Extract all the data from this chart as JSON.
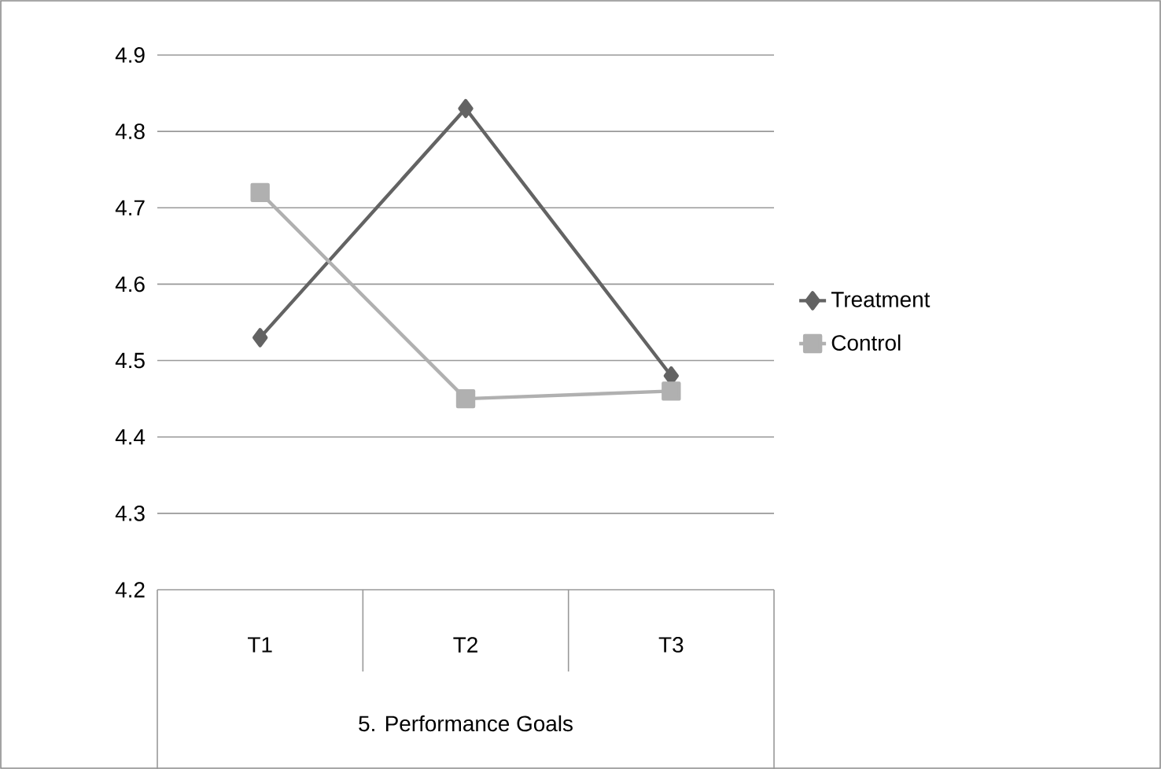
{
  "chart_data": {
    "type": "line",
    "xlabel": "5. Performance Goals",
    "categories": [
      "T1",
      "T2",
      "T3"
    ],
    "series": [
      {
        "name": "Treatment",
        "color": "#636363",
        "values": [
          4.53,
          4.83,
          4.48
        ],
        "marker": "diamond"
      },
      {
        "name": "Control",
        "color": "#b0b0b0",
        "values": [
          4.72,
          4.45,
          4.46
        ],
        "marker": "square"
      }
    ],
    "ylim": [
      4.2,
      4.9
    ],
    "yticks": [
      4.2,
      4.3,
      4.4,
      4.5,
      4.6,
      4.7,
      4.8,
      4.9
    ],
    "grid": "y",
    "legend": "right",
    "line_style": "solid"
  }
}
